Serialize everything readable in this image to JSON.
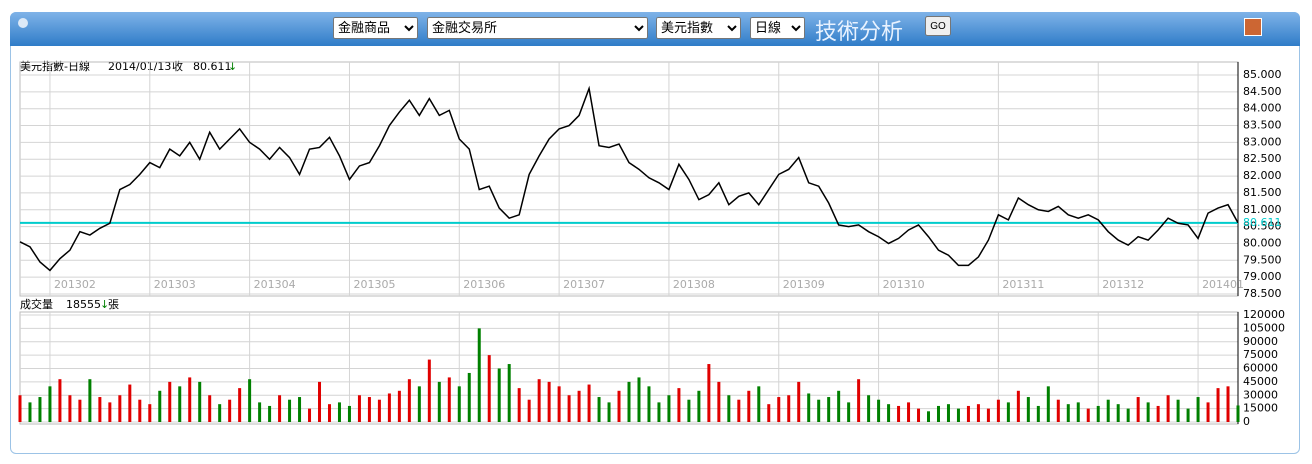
{
  "header": {
    "selects": [
      "金融商品",
      "金融交易所",
      "美元指數",
      "日線"
    ],
    "title": "技術分析",
    "button": "GO"
  },
  "chart_data": [
    {
      "type": "line",
      "title": "美元指數-日線",
      "date": "2014/01/13",
      "close_label": "收",
      "close": 80.611,
      "arrow": "↓",
      "color": "#000000",
      "close_line_color": "#00cccc",
      "up_color": "#e00000",
      "down_color": "#008000",
      "grid": true,
      "categories": [
        null,
        null,
        null,
        "201302",
        null,
        null,
        null,
        null,
        null,
        null,
        null,
        null,
        null,
        "201303",
        null,
        null,
        null,
        null,
        null,
        null,
        null,
        null,
        null,
        "201304",
        null,
        null,
        null,
        null,
        null,
        null,
        null,
        null,
        null,
        "201305",
        null,
        null,
        null,
        null,
        null,
        null,
        null,
        null,
        null,
        null,
        "201306",
        null,
        null,
        null,
        null,
        null,
        null,
        null,
        null,
        null,
        "201307",
        null,
        null,
        null,
        null,
        null,
        null,
        null,
        null,
        null,
        null,
        "201308",
        null,
        null,
        null,
        null,
        null,
        null,
        null,
        null,
        null,
        null,
        "201309",
        null,
        null,
        null,
        null,
        null,
        null,
        null,
        null,
        null,
        "201310",
        null,
        null,
        null,
        null,
        null,
        null,
        null,
        null,
        null,
        null,
        null,
        "201311",
        null,
        null,
        null,
        null,
        null,
        null,
        null,
        null,
        null,
        "201312",
        null,
        null,
        null,
        null,
        null,
        null,
        null,
        null,
        null,
        "201401",
        null,
        null,
        null,
        null
      ],
      "values": [
        80.05,
        79.9,
        79.45,
        79.2,
        79.55,
        79.8,
        80.35,
        80.25,
        80.45,
        80.6,
        81.6,
        81.75,
        82.05,
        82.4,
        82.25,
        82.8,
        82.6,
        83.0,
        82.5,
        83.3,
        82.8,
        83.1,
        83.4,
        83.0,
        82.8,
        82.5,
        82.85,
        82.55,
        82.05,
        82.8,
        82.85,
        83.15,
        82.6,
        81.9,
        82.3,
        82.4,
        82.9,
        83.5,
        83.9,
        84.25,
        83.8,
        84.3,
        83.8,
        83.95,
        83.1,
        82.8,
        81.6,
        81.7,
        81.05,
        80.75,
        80.85,
        82.05,
        82.6,
        83.1,
        83.4,
        83.5,
        83.8,
        84.6,
        82.9,
        82.85,
        82.95,
        82.4,
        82.2,
        81.95,
        81.8,
        81.6,
        82.35,
        81.9,
        81.3,
        81.45,
        81.8,
        81.15,
        81.4,
        81.5,
        81.15,
        81.6,
        82.05,
        82.2,
        82.55,
        81.8,
        81.7,
        81.2,
        80.55,
        80.5,
        80.55,
        80.35,
        80.2,
        80.0,
        80.15,
        80.4,
        80.55,
        80.2,
        79.8,
        79.65,
        79.35,
        79.35,
        79.6,
        80.1,
        80.85,
        80.7,
        81.35,
        81.15,
        81.0,
        80.95,
        81.1,
        80.85,
        80.75,
        80.85,
        80.7,
        80.35,
        80.1,
        79.95,
        80.2,
        80.1,
        80.4,
        80.75,
        80.6,
        80.55,
        80.15,
        80.9,
        81.05,
        81.15,
        80.611
      ],
      "ylim": [
        78.5,
        85.0
      ],
      "yticks": [
        {
          "value": 78.5,
          "label": "78.500"
        },
        {
          "value": 79.0,
          "label": "79.000"
        },
        {
          "value": 79.5,
          "label": "79.500"
        },
        {
          "value": 80.0,
          "label": "80.000"
        },
        {
          "value": 80.5,
          "label": "80.500"
        },
        {
          "value": 81.0,
          "label": "81.000"
        },
        {
          "value": 81.5,
          "label": "81.500"
        },
        {
          "value": 82.0,
          "label": "82.000"
        },
        {
          "value": 82.5,
          "label": "82.500"
        },
        {
          "value": 83.0,
          "label": "83.000"
        },
        {
          "value": 83.5,
          "label": "83.500"
        },
        {
          "value": 84.0,
          "label": "84.000"
        },
        {
          "value": 84.5,
          "label": "84.500"
        },
        {
          "value": 85.0,
          "label": "85.000"
        }
      ]
    },
    {
      "type": "bar",
      "title": "成交量",
      "last": 18555,
      "arrow": "↓",
      "unit": "張",
      "grid": true,
      "values": [
        30000,
        22000,
        28000,
        40000,
        48000,
        30000,
        25000,
        48000,
        28000,
        22000,
        30000,
        42000,
        25000,
        20000,
        35000,
        45000,
        40000,
        50000,
        45000,
        30000,
        20000,
        25000,
        38000,
        48000,
        22000,
        18000,
        30000,
        25000,
        28000,
        15000,
        45000,
        20000,
        22000,
        18000,
        30000,
        28000,
        25000,
        32000,
        35000,
        48000,
        40000,
        70000,
        45000,
        50000,
        40000,
        55000,
        105000,
        75000,
        60000,
        65000,
        38000,
        25000,
        48000,
        45000,
        40000,
        30000,
        35000,
        42000,
        28000,
        22000,
        35000,
        45000,
        50000,
        40000,
        22000,
        30000,
        38000,
        25000,
        35000,
        65000,
        45000,
        30000,
        25000,
        35000,
        40000,
        20000,
        28000,
        30000,
        45000,
        32000,
        25000,
        28000,
        35000,
        22000,
        48000,
        30000,
        25000,
        20000,
        18000,
        22000,
        15000,
        12000,
        18000,
        20000,
        15000,
        18000,
        20000,
        15000,
        25000,
        22000,
        35000,
        28000,
        18000,
        40000,
        25000,
        20000,
        22000,
        15000,
        18000,
        25000,
        20000,
        15000,
        28000,
        22000,
        18000,
        30000,
        25000,
        15000,
        28000,
        22000,
        38000,
        40000,
        18555
      ],
      "ylim": [
        0,
        120000
      ],
      "yticks": [
        0,
        15000,
        30000,
        45000,
        60000,
        75000,
        90000,
        105000,
        120000
      ]
    }
  ]
}
